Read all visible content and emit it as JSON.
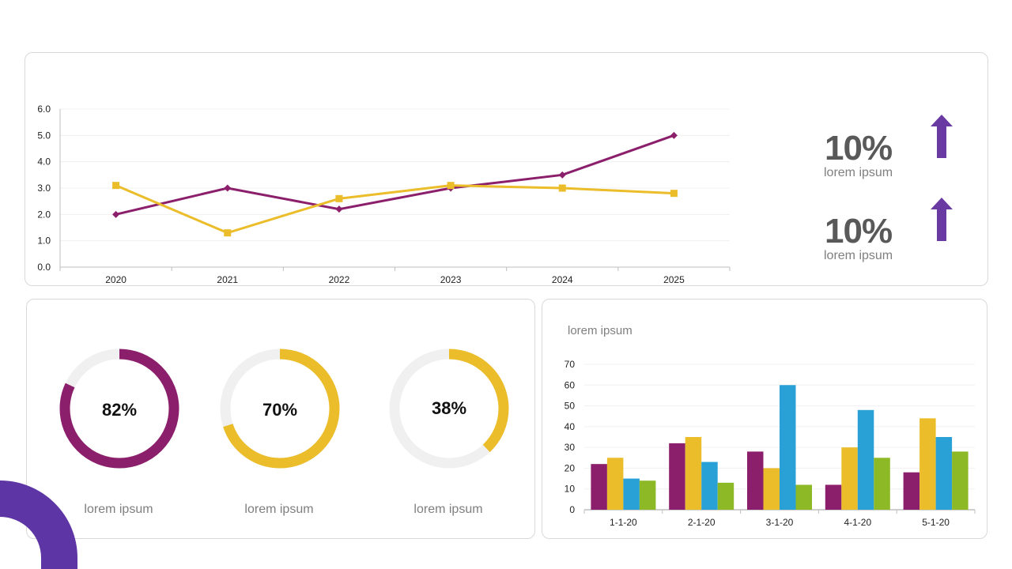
{
  "colors": {
    "purple": "#8b1f6b",
    "yellow": "#ebbd2a",
    "blue": "#2aa1d6",
    "green": "#8db927",
    "accent": "#6a3aa3",
    "track": "#f0f0f0"
  },
  "chart_data": [
    {
      "type": "line",
      "categories": [
        "2020",
        "2021",
        "2022",
        "2023",
        "2024",
        "2025"
      ],
      "series": [
        {
          "values": [
            2.0,
            3.0,
            2.2,
            3.0,
            3.5,
            5.0
          ],
          "color": "#8b1f6b",
          "marker": "diamond"
        },
        {
          "values": [
            3.1,
            1.3,
            2.6,
            3.1,
            3.0,
            2.8
          ],
          "color": "#ebbd2a",
          "marker": "square"
        }
      ],
      "yticks": [
        "0.0",
        "1.0",
        "2.0",
        "3.0",
        "4.0",
        "5.0",
        "6.0"
      ],
      "ylim": [
        0,
        6
      ],
      "grid": true
    },
    {
      "type": "pie",
      "donuts": [
        {
          "value": 82,
          "label": "82%",
          "caption": "lorem ipsum",
          "color": "#8b1f6b"
        },
        {
          "value": 70,
          "label": "70%",
          "caption": "lorem ipsum",
          "color": "#ebbd2a"
        },
        {
          "value": 38,
          "label": "38%",
          "caption": "lorem ipsum",
          "color": "#ebbd2a"
        }
      ]
    },
    {
      "type": "bar",
      "title": "lorem ipsum",
      "categories": [
        "1-1-20",
        "2-1-20",
        "3-1-20",
        "4-1-20",
        "5-1-20"
      ],
      "series": [
        {
          "values": [
            22,
            32,
            28,
            12,
            18
          ],
          "color": "#8b1f6b"
        },
        {
          "values": [
            25,
            35,
            20,
            30,
            44
          ],
          "color": "#ebbd2a"
        },
        {
          "values": [
            15,
            23,
            60,
            48,
            35
          ],
          "color": "#2aa1d6"
        },
        {
          "values": [
            14,
            13,
            12,
            25,
            28
          ],
          "color": "#8db927"
        }
      ],
      "yticks": [
        "0",
        "10",
        "20",
        "30",
        "40",
        "50",
        "60",
        "70"
      ],
      "ylim": [
        0,
        70
      ],
      "grid": true
    }
  ],
  "kpis": [
    {
      "value": "10%",
      "label": "lorem ipsum",
      "icon": "arrow-up-icon"
    },
    {
      "value": "10%",
      "label": "lorem ipsum",
      "icon": "arrow-up-icon"
    }
  ]
}
